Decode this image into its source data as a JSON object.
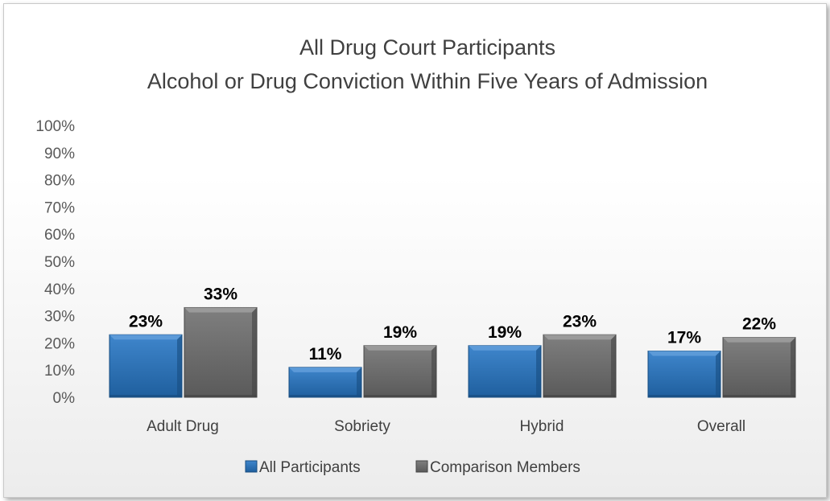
{
  "chart_data": {
    "type": "bar",
    "title": "All Drug Court Participants",
    "subtitle": "Alcohol or Drug Conviction Within Five Years of Admission",
    "categories": [
      "Adult Drug",
      "Sobriety",
      "Hybrid",
      "Overall"
    ],
    "series": [
      {
        "name": "All Participants",
        "values": [
          23,
          11,
          19,
          17
        ],
        "color": "#2e75b6"
      },
      {
        "name": "Comparison Members",
        "values": [
          33,
          19,
          23,
          22
        ],
        "color": "#6e6e6e"
      }
    ],
    "data_labels": [
      [
        "23%",
        "11%",
        "19%",
        "17%"
      ],
      [
        "33%",
        "19%",
        "23%",
        "22%"
      ]
    ],
    "yticks": [
      "0%",
      "10%",
      "20%",
      "30%",
      "40%",
      "50%",
      "60%",
      "70%",
      "80%",
      "90%",
      "100%"
    ],
    "ylim": [
      0,
      100
    ],
    "xlabel": "",
    "ylabel": "",
    "grid": false,
    "legend_position": "bottom"
  }
}
